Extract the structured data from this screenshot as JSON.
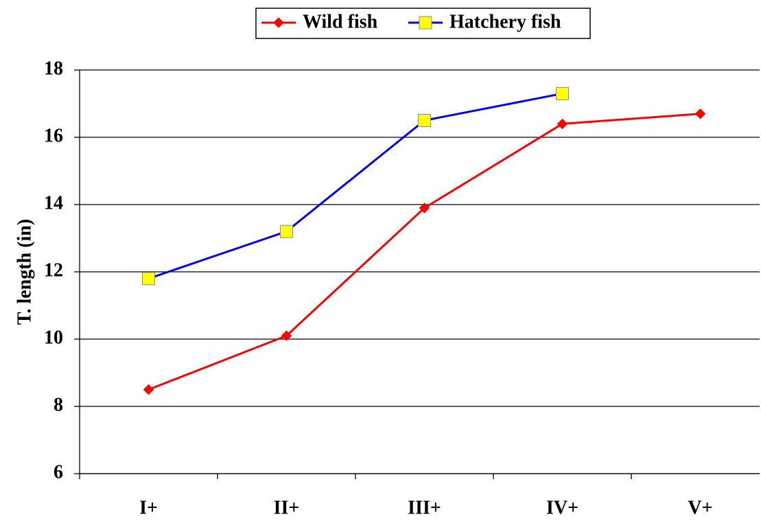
{
  "chart_data": {
    "type": "line",
    "y_label": "T. length (in)",
    "categories": [
      "I+",
      "II+",
      "III+",
      "IV+",
      "V+"
    ],
    "series": [
      {
        "name": "Wild fish",
        "color": "#ff0000",
        "marker": "diamond",
        "values": [
          8.5,
          10.1,
          13.9,
          16.4,
          16.7
        ]
      },
      {
        "name": "Hatchery fish",
        "color": "#0000ff",
        "marker": "square",
        "values": [
          11.8,
          13.2,
          16.5,
          17.3,
          null
        ]
      }
    ],
    "ylim": [
      6,
      18
    ],
    "yticks": [
      6,
      8,
      10,
      12,
      14,
      16,
      18
    ],
    "grid": true,
    "legend": "top"
  }
}
